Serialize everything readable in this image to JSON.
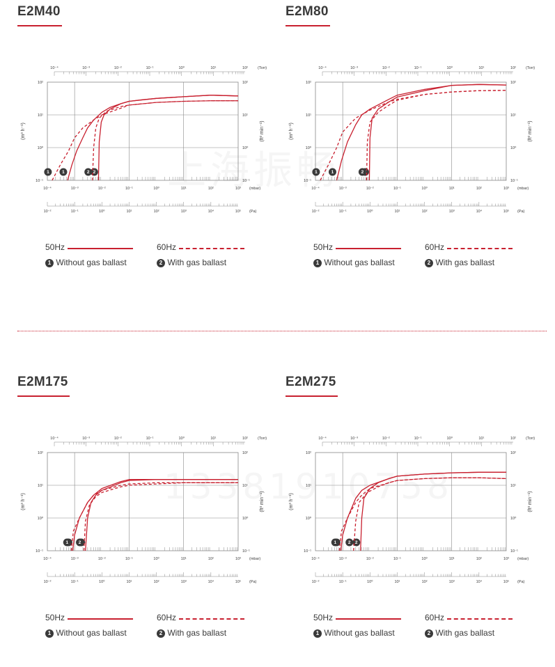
{
  "watermark_top": "上海振畅",
  "watermark_bottom": "13381910758",
  "colors": {
    "curve": "#c8202f",
    "grid": "#888888",
    "text": "#3a3a3a",
    "badge": "#3a3a3a"
  },
  "axis_units": {
    "torr": "(Torr)",
    "mbar": "(mbar)",
    "pa": "(Pa)"
  },
  "legend": {
    "hz50": "50Hz",
    "hz60": "60Hz",
    "without": "Without gas ballast",
    "with": "With gas ballast",
    "badge1": "1",
    "badge2": "2"
  },
  "chart_data": [
    {
      "title": "E2M40",
      "type": "line",
      "ylabel_left": "(m³ h⁻¹)",
      "ylabel_right": "(ft³ min⁻¹)",
      "y_left_ticks": [
        "10²",
        "10¹",
        "10⁰",
        "10⁻¹"
      ],
      "y_right_ticks": [
        "10²",
        "10¹",
        "10⁰",
        "10⁻¹"
      ],
      "x_torr_ticks": [
        "10⁻⁴",
        "10⁻³",
        "10⁻²",
        "10⁻¹",
        "10⁰",
        "10¹",
        "10²"
      ],
      "x_mbar_ticks": [
        "10⁻⁴",
        "10⁻³",
        "10⁻²",
        "10⁻¹",
        "10⁰",
        "10¹",
        "10²",
        "10³"
      ],
      "x_pa_ticks": [
        "10⁻²",
        "10⁻¹",
        "10⁰",
        "10¹",
        "10²",
        "10³",
        "10⁴",
        "10⁵"
      ],
      "xlim_mbar": [
        0.0001,
        1000
      ],
      "ylim": [
        0.1,
        100
      ],
      "log_x": true,
      "log_y": true,
      "series": [
        {
          "name": "50Hz",
          "style": "solid",
          "badge": "1",
          "x": [
            0.00055,
            0.0008,
            0.0012,
            0.002,
            0.003,
            0.005,
            0.01,
            0.02,
            0.05,
            0.1,
            0.3,
            1,
            10,
            100,
            1000
          ],
          "y": [
            0.1,
            0.3,
            0.8,
            2.0,
            4.0,
            7.0,
            12,
            17,
            22,
            26,
            29,
            32,
            36,
            40,
            38
          ]
        },
        {
          "name": "60Hz",
          "style": "dashed",
          "badge": "1",
          "x": [
            0.00015,
            0.0003,
            0.0006,
            0.001,
            0.002,
            0.005,
            0.01,
            0.05,
            0.1,
            1,
            10,
            100,
            1000
          ],
          "y": [
            0.1,
            0.3,
            0.8,
            2.0,
            4.0,
            7.0,
            10,
            16,
            20,
            24,
            26,
            27,
            27
          ]
        },
        {
          "name": "50Hz",
          "style": "solid",
          "badge": "2",
          "x": [
            0.0075,
            0.008,
            0.0095,
            0.012,
            0.02,
            0.05,
            0.1,
            1,
            10,
            100,
            1000
          ],
          "y": [
            0.1,
            1.5,
            6,
            10,
            15,
            22,
            26,
            32,
            36,
            40,
            38
          ]
        },
        {
          "name": "60Hz",
          "style": "dashed",
          "badge": "2",
          "x": [
            0.0045,
            0.005,
            0.006,
            0.008,
            0.015,
            0.05,
            0.1,
            1,
            10,
            100,
            1000
          ],
          "y": [
            0.1,
            1.0,
            4.0,
            8,
            13,
            18,
            20,
            24,
            26,
            27,
            27
          ]
        }
      ]
    },
    {
      "title": "E2M80",
      "type": "line",
      "ylabel_left": "(m³ h⁻¹)",
      "ylabel_right": "(ft³ min⁻¹)",
      "y_left_ticks": [
        "10²",
        "10¹",
        "10⁰",
        "10⁻¹"
      ],
      "y_right_ticks": [
        "10²",
        "10¹",
        "10⁰",
        "10⁻¹"
      ],
      "x_torr_ticks": [
        "10⁻⁴",
        "10⁻³",
        "10⁻²",
        "10⁻¹",
        "10⁰",
        "10¹",
        "10²"
      ],
      "x_mbar_ticks": [
        "10⁻⁴",
        "10⁻³",
        "10⁻²",
        "10⁻¹",
        "10⁰",
        "10¹",
        "10²",
        "10³"
      ],
      "x_pa_ticks": [
        "10⁻²",
        "10⁻¹",
        "10⁰",
        "10¹",
        "10²",
        "10³",
        "10⁴",
        "10⁵"
      ],
      "xlim_mbar": [
        0.0001,
        1000
      ],
      "ylim": [
        0.1,
        100
      ],
      "log_x": true,
      "log_y": true,
      "series": [
        {
          "name": "50Hz",
          "style": "solid",
          "badge": "1",
          "x": [
            0.0006,
            0.0009,
            0.0015,
            0.003,
            0.005,
            0.01,
            0.05,
            0.1,
            1,
            10,
            100,
            1000
          ],
          "y": [
            0.1,
            0.4,
            1.5,
            5,
            10,
            15,
            30,
            40,
            60,
            80,
            85,
            82
          ]
        },
        {
          "name": "60Hz",
          "style": "dashed",
          "badge": "1",
          "x": [
            0.00015,
            0.0003,
            0.0006,
            0.001,
            0.003,
            0.01,
            0.05,
            0.1,
            1,
            10,
            100,
            1000
          ],
          "y": [
            0.1,
            0.3,
            1.0,
            3.0,
            8,
            14,
            25,
            30,
            42,
            50,
            55,
            56
          ]
        },
        {
          "name": "50Hz",
          "style": "solid",
          "badge": "2",
          "x": [
            0.0095,
            0.01,
            0.012,
            0.02,
            0.05,
            0.1,
            1,
            10,
            100,
            1000
          ],
          "y": [
            0.1,
            2.0,
            8,
            15,
            25,
            35,
            55,
            80,
            85,
            82
          ]
        },
        {
          "name": "60Hz",
          "style": "dashed",
          "badge": "2",
          "x": [
            0.0075,
            0.008,
            0.01,
            0.02,
            0.05,
            0.1,
            1,
            10,
            100,
            1000
          ],
          "y": [
            0.1,
            1.5,
            6,
            12,
            20,
            28,
            42,
            50,
            55,
            56
          ]
        }
      ]
    },
    {
      "title": "E2M175",
      "type": "line",
      "ylabel_left": "(m³ h⁻¹)",
      "ylabel_right": "(ft³ min⁻¹)",
      "y_left_ticks": [
        "10²",
        "10¹",
        "10⁰",
        "10⁻¹"
      ],
      "y_right_ticks": [
        "10²",
        "10¹",
        "10⁰",
        "10⁻¹"
      ],
      "x_torr_ticks": [
        "10⁻⁴",
        "10⁻³",
        "10⁻²",
        "10⁻¹",
        "10⁰",
        "10¹",
        "10²"
      ],
      "x_mbar_ticks": [
        "10⁻⁴",
        "10⁻³",
        "10⁻²",
        "10⁻¹",
        "10⁰",
        "10¹",
        "10²",
        "10³"
      ],
      "x_pa_ticks": [
        "10⁻²",
        "10⁻¹",
        "10⁰",
        "10¹",
        "10²",
        "10³",
        "10⁴",
        "10⁵"
      ],
      "xlim_mbar": [
        0.0001,
        1000
      ],
      "ylim": [
        0.1,
        100
      ],
      "log_x": true,
      "log_y": true,
      "series": [
        {
          "name": "50Hz",
          "style": "solid",
          "badge": "1",
          "x": [
            0.00085,
            0.001,
            0.0015,
            0.003,
            0.005,
            0.01,
            0.05,
            0.1,
            1,
            10,
            100,
            1000
          ],
          "y": [
            0.1,
            0.3,
            1.0,
            3.0,
            5,
            8,
            13,
            15,
            15,
            15,
            15,
            15
          ]
        },
        {
          "name": "60Hz",
          "style": "dashed",
          "badge": "1",
          "x": [
            0.00075,
            0.0009,
            0.0015,
            0.003,
            0.005,
            0.01,
            0.05,
            0.1,
            1,
            10,
            100,
            1000
          ],
          "y": [
            0.1,
            0.4,
            1.0,
            3.0,
            5,
            7,
            10,
            11,
            12,
            12,
            12,
            12
          ]
        },
        {
          "name": "50Hz",
          "style": "solid",
          "badge": "2",
          "x": [
            0.0025,
            0.003,
            0.004,
            0.006,
            0.01,
            0.05,
            0.1,
            1,
            10,
            100,
            1000
          ],
          "y": [
            0.1,
            1.0,
            3.0,
            5,
            7,
            12,
            14,
            15,
            15,
            15,
            15
          ]
        },
        {
          "name": "60Hz",
          "style": "dashed",
          "badge": "2",
          "x": [
            0.0022,
            0.0025,
            0.0035,
            0.006,
            0.01,
            0.05,
            0.1,
            1,
            10,
            100,
            1000
          ],
          "y": [
            0.1,
            0.8,
            2.5,
            4.5,
            6,
            9,
            10,
            11,
            12,
            12,
            12
          ]
        }
      ]
    },
    {
      "title": "E2M275",
      "type": "line",
      "ylabel_left": "(m³ h⁻¹)",
      "ylabel_right": "(ft³ min⁻¹)",
      "y_left_ticks": [
        "10²",
        "10¹",
        "10⁰",
        "10⁻¹"
      ],
      "y_right_ticks": [
        "10²",
        "10¹",
        "10⁰",
        "10⁻¹"
      ],
      "x_torr_ticks": [
        "10⁻⁴",
        "10⁻³",
        "10⁻²",
        "10⁻¹",
        "10⁰",
        "10¹",
        "10²"
      ],
      "x_mbar_ticks": [
        "10⁻⁴",
        "10⁻³",
        "10⁻²",
        "10⁻¹",
        "10⁰",
        "10¹",
        "10²",
        "10³"
      ],
      "x_pa_ticks": [
        "10⁻²",
        "10⁻¹",
        "10⁰",
        "10¹",
        "10²",
        "10³",
        "10⁴",
        "10⁵"
      ],
      "xlim_mbar": [
        0.0001,
        1000
      ],
      "ylim": [
        0.1,
        100
      ],
      "log_x": true,
      "log_y": true,
      "series": [
        {
          "name": "50Hz",
          "style": "solid",
          "badge": "1",
          "x": [
            0.00085,
            0.001,
            0.0015,
            0.003,
            0.005,
            0.01,
            0.05,
            0.1,
            1,
            10,
            100,
            1000
          ],
          "y": [
            0.1,
            0.3,
            1.0,
            4.0,
            7,
            10,
            16,
            19,
            22,
            24,
            25,
            25
          ]
        },
        {
          "name": "60Hz",
          "style": "dashed",
          "badge": "1",
          "x": [
            0.00075,
            0.0009,
            0.0015,
            0.003,
            0.005,
            0.01,
            0.05,
            0.1,
            1,
            10,
            100,
            1000
          ],
          "y": [
            0.1,
            0.4,
            1.0,
            3.0,
            5,
            8,
            12,
            14,
            16,
            17,
            17,
            16
          ]
        },
        {
          "name": "50Hz",
          "style": "solid",
          "badge": "2",
          "x": [
            0.0045,
            0.005,
            0.006,
            0.01,
            0.02,
            0.05,
            0.1,
            1,
            10,
            100,
            1000
          ],
          "y": [
            0.1,
            1.0,
            4.0,
            8,
            12,
            16,
            19,
            22,
            24,
            25,
            25
          ]
        },
        {
          "name": "60Hz",
          "style": "dashed",
          "badge": "2",
          "x": [
            0.0025,
            0.003,
            0.004,
            0.008,
            0.02,
            0.05,
            0.1,
            1,
            10,
            100,
            1000
          ],
          "y": [
            0.1,
            0.8,
            3.0,
            6,
            9,
            12,
            14,
            16,
            17,
            17,
            16
          ]
        }
      ]
    }
  ]
}
